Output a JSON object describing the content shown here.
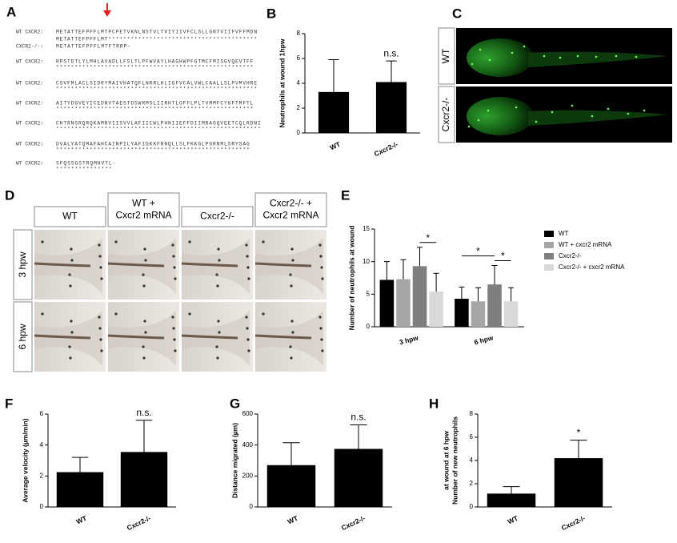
{
  "panel_labels": [
    "A",
    "B",
    "C",
    "D",
    "E",
    "F",
    "G",
    "H"
  ],
  "alignment": {
    "blocks": [
      {
        "rows": [
          {
            "label": "WT CXCR2:",
            "seq": "METATTEFPFFLMTPCPETVKNLNSTVLTVIYIIVFCLSLLGNTVIIFVFFMDN"
          },
          {
            "label": "",
            "seq": "METATTEFPFFLMT****************************************"
          },
          {
            "label": "CXCR2-/-:",
            "seq": "METATTEFPFFLMTFTRRP-"
          }
        ]
      },
      {
        "rows": [
          {
            "label": "WT CXCR2:",
            "seq": "RPSTDTLYLMHLAVADLLFSLTLPFWVAYLHAGHWPFGTMCFMISGVQEVTFF"
          },
          {
            "label": "",
            "seq": "*****************************************************"
          }
        ]
      },
      {
        "rows": [
          {
            "label": "WT CXCR2:",
            "seq": "CSVFMLACLSIDRYMAIVHATQFLNRRLHLIGFVCALVWLCAALLSLPVMVHRE"
          },
          {
            "label": "",
            "seq": "******************************************************"
          }
        ]
      },
      {
        "rows": [
          {
            "label": "WT CXCR2:",
            "seq": "AITYDGVEYICEDNVTAESTDSWRMSLIIRHTLGFFLPLTVMMFCYGFTMFTL"
          },
          {
            "label": "",
            "seq": "*****************************************************"
          }
        ]
      },
      {
        "rows": [
          {
            "label": "WT CXCR2:",
            "seq": "CHTRNSRQRQKAMRVIISVVLAFIICWLPHNIIEFFDIIMRAGQVEETCQLRDNI"
          },
          {
            "label": "",
            "seq": "*******************************************************"
          }
        ]
      },
      {
        "rows": [
          {
            "label": "WT CXCR2:",
            "seq": "DVALYATQMAFAHCAINPILYAFIGKKFRNQLLSLFKKGLPGRNMLSRYSAG"
          },
          {
            "label": "",
            "seq": "****************************************************"
          }
        ]
      },
      {
        "rows": [
          {
            "label": "WT CXCR2:",
            "seq": "SFQSSGSTRQMHVTL-"
          },
          {
            "label": "",
            "seq": "***************"
          }
        ]
      }
    ]
  },
  "images": {
    "C": {
      "rows": [
        "WT",
        "Cxcr2-/-"
      ]
    },
    "D": {
      "columns": [
        "WT",
        "WT +\nCxcr2 mRNA",
        "Cxcr2-/-",
        "Cxcr2-/- +\nCxcr2 mRNA"
      ],
      "rows": [
        "3 hpw",
        "6 hpw"
      ]
    }
  },
  "chart_data": [
    {
      "type": "bar",
      "ylabel": [
        "Neutrophils at wound 1hpw"
      ],
      "categories": [
        "WT",
        "Cxcr2-/-"
      ],
      "values": [
        3.3,
        4.1
      ],
      "errors": [
        2.6,
        1.7
      ],
      "color": "#000000",
      "ylim": [
        0,
        8
      ],
      "yticks": [
        0,
        2,
        4,
        6,
        8
      ],
      "annotations": [
        "n.s."
      ]
    },
    {
      "type": "grouped-bar",
      "ylabel": [
        "Number of neutrophils at wound"
      ],
      "categories": [
        "3 hpw",
        "6 hpw"
      ],
      "series": [
        {
          "name": "WT",
          "color": "#000000",
          "values": [
            7.2,
            4.3
          ],
          "errors": [
            2.8,
            1.8
          ]
        },
        {
          "name": "WT + cxcr2 mRNA",
          "color": "#a6a6a6",
          "values": [
            7.3,
            3.9
          ],
          "errors": [
            3.0,
            2.1
          ]
        },
        {
          "name": "Cxcr2-/-",
          "color": "#7f7f7f",
          "values": [
            9.3,
            6.5
          ],
          "errors": [
            2.9,
            2.9
          ]
        },
        {
          "name": "Cxcr2-/- + cxcr2 mRNA",
          "color": "#d9d9d9",
          "values": [
            5.4,
            3.9
          ],
          "errors": [
            2.8,
            2.1
          ]
        }
      ],
      "ylim": [
        0,
        15
      ],
      "yticks": [
        0,
        5,
        10,
        15
      ],
      "annotations": [
        "*",
        "*",
        "*"
      ]
    },
    {
      "type": "bar",
      "ylabel": [
        "Average velocity (µm/min)"
      ],
      "categories": [
        "WT",
        "Cxcr2-/-"
      ],
      "values": [
        2.25,
        3.55
      ],
      "errors": [
        0.95,
        2.05
      ],
      "color": "#000000",
      "ylim": [
        0,
        6
      ],
      "yticks": [
        0,
        2,
        4,
        6
      ],
      "annotations": [
        "n.s."
      ]
    },
    {
      "type": "bar",
      "ylabel": [
        "Distance migrated (µm)"
      ],
      "categories": [
        "WT",
        "Cxcr2-/-"
      ],
      "values": [
        270,
        375
      ],
      "errors": [
        145,
        155
      ],
      "color": "#000000",
      "ylim": [
        0,
        600
      ],
      "yticks": [
        0,
        200,
        400,
        600
      ],
      "annotations": [
        "n.s."
      ]
    },
    {
      "type": "bar",
      "ylabel": [
        "Number of new neutrophils",
        "at wound at 6 hpw"
      ],
      "categories": [
        "WT",
        "Cxcr2-/-"
      ],
      "values": [
        1.15,
        4.2
      ],
      "errors": [
        0.6,
        1.55
      ],
      "color": "#000000",
      "ylim": [
        0,
        8
      ],
      "yticks": [
        0,
        2,
        4,
        6,
        8
      ],
      "annotations": [
        "*"
      ]
    }
  ]
}
